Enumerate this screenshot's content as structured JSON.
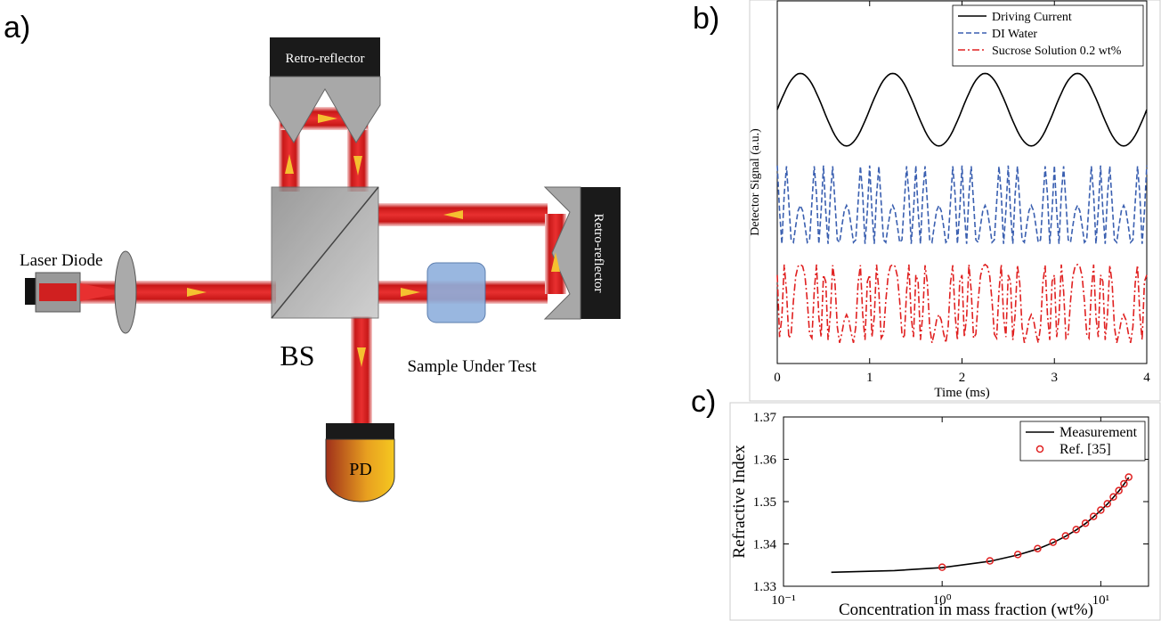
{
  "diagram": {
    "panel_label": "a)",
    "top_reflector": "Retro-reflector",
    "right_reflector": "Retro-reflector",
    "laser": "Laser Diode",
    "splitter": "BS",
    "sample": "Sample Under Test",
    "detector": "PD"
  },
  "chart_data": [
    {
      "type": "line",
      "panel_label": "b)",
      "xlabel": "Time (ms)",
      "ylabel": "Detector Signal (a.u.)",
      "xlim": [
        0,
        4
      ],
      "xticks": [
        0,
        1,
        2,
        3,
        4
      ],
      "ylim": [
        0,
        10
      ],
      "legend": "upper right",
      "x": [
        0,
        0.025,
        0.05,
        0.075,
        0.1,
        0.125,
        0.15,
        0.175,
        0.2,
        0.225,
        0.25,
        0.275,
        0.3,
        0.325,
        0.35,
        0.375,
        0.4,
        0.425,
        0.45,
        0.475,
        0.5,
        0.525,
        0.55,
        0.575,
        0.6,
        0.625,
        0.65,
        0.675,
        0.7,
        0.725,
        0.75,
        0.775,
        0.8,
        0.825,
        0.85,
        0.875,
        0.9,
        0.925,
        0.95,
        0.975,
        1,
        1.025,
        1.05,
        1.075,
        1.1,
        1.125,
        1.15,
        1.175,
        1.2,
        1.225,
        1.25,
        1.275,
        1.3,
        1.325,
        1.35,
        1.375,
        1.4,
        1.425,
        1.45,
        1.475,
        1.5,
        1.525,
        1.55,
        1.575,
        1.6,
        1.625,
        1.65,
        1.675,
        1.7,
        1.725,
        1.75,
        1.775,
        1.8,
        1.825,
        1.85,
        1.875,
        1.9,
        1.925,
        1.95,
        1.975,
        2,
        2.025,
        2.05,
        2.075,
        2.1,
        2.125,
        2.15,
        2.175,
        2.2,
        2.225,
        2.25,
        2.275,
        2.3,
        2.325,
        2.35,
        2.375,
        2.4,
        2.425,
        2.45,
        2.475,
        2.5,
        2.525,
        2.55,
        2.575,
        2.6,
        2.625,
        2.65,
        2.675,
        2.7,
        2.725,
        2.75,
        2.775,
        2.8,
        2.825,
        2.85,
        2.875,
        2.9,
        2.925,
        2.95,
        2.975,
        3,
        3.025,
        3.05,
        3.075,
        3.1,
        3.125,
        3.15,
        3.175,
        3.2,
        3.225,
        3.25,
        3.275,
        3.3,
        3.325,
        3.35,
        3.375,
        3.4,
        3.425,
        3.45,
        3.475,
        3.5,
        3.525,
        3.55,
        3.575,
        3.6,
        3.625,
        3.65,
        3.675,
        3.7,
        3.725,
        3.75,
        3.775,
        3.8,
        3.825,
        3.85,
        3.875,
        3.9,
        3.925,
        3.95,
        3.975,
        4
      ],
      "series": [
        {
          "name": "Driving Current",
          "color": "#000000",
          "dash": "solid",
          "values": [
            7,
            7.16,
            7.31,
            7.45,
            7.59,
            7.71,
            7.81,
            7.89,
            7.95,
            7.99,
            8,
            7.99,
            7.95,
            7.89,
            7.81,
            7.71,
            7.59,
            7.45,
            7.31,
            7.16,
            7,
            6.84,
            6.69,
            6.55,
            6.41,
            6.29,
            6.19,
            6.11,
            6.05,
            6.01,
            6,
            6.01,
            6.05,
            6.11,
            6.19,
            6.29,
            6.41,
            6.55,
            6.69,
            6.84,
            7,
            7.16,
            7.31,
            7.45,
            7.59,
            7.71,
            7.81,
            7.89,
            7.95,
            7.99,
            8,
            7.99,
            7.95,
            7.89,
            7.81,
            7.71,
            7.59,
            7.45,
            7.31,
            7.16,
            7,
            6.84,
            6.69,
            6.55,
            6.41,
            6.29,
            6.19,
            6.11,
            6.05,
            6.01,
            6,
            6.01,
            6.05,
            6.11,
            6.19,
            6.29,
            6.41,
            6.55,
            6.69,
            6.84,
            7,
            7.16,
            7.31,
            7.45,
            7.59,
            7.71,
            7.81,
            7.89,
            7.95,
            7.99,
            8,
            7.99,
            7.95,
            7.89,
            7.81,
            7.71,
            7.59,
            7.45,
            7.31,
            7.16,
            7,
            6.84,
            6.69,
            6.55,
            6.41,
            6.29,
            6.19,
            6.11,
            6.05,
            6.01,
            6,
            6.01,
            6.05,
            6.11,
            6.19,
            6.29,
            6.41,
            6.55,
            6.69,
            6.84,
            7,
            7.16,
            7.31,
            7.45,
            7.59,
            7.71,
            7.81,
            7.89,
            7.95,
            7.99,
            8,
            7.99,
            7.95,
            7.89,
            7.81,
            7.71,
            7.59,
            7.45,
            7.31,
            7.16,
            7,
            6.84,
            6.69,
            6.55,
            6.41,
            6.29,
            6.19,
            6.11,
            6.05,
            6.01,
            6,
            6.01,
            6.05,
            6.11,
            6.19,
            6.29,
            6.41,
            6.55,
            6.69,
            6.84,
            7
          ]
        },
        {
          "name": "DI Water",
          "color": "#3a5fb0",
          "dash": "dashed",
          "values": [
            5.46,
            4.2,
            3.3,
            4.66,
            5.44,
            4.44,
            3.41,
            3.34,
            3.8,
            4.21,
            4.36,
            4.21,
            3.8,
            3.34,
            3.41,
            4.44,
            5.44,
            4.66,
            3.3,
            4.2,
            5.46,
            4.2,
            3.3,
            4.66,
            5.44,
            4.44,
            3.41,
            3.34,
            3.8,
            4.21,
            4.36,
            4.21,
            3.8,
            3.34,
            3.41,
            4.44,
            5.44,
            4.66,
            3.3,
            4.2,
            5.46,
            4.2,
            3.3,
            4.66,
            5.44,
            4.44,
            3.41,
            3.34,
            3.8,
            4.21,
            4.36,
            4.21,
            3.8,
            3.34,
            3.41,
            4.44,
            5.44,
            4.66,
            3.3,
            4.2,
            5.46,
            4.2,
            3.3,
            4.66,
            5.44,
            4.44,
            3.41,
            3.34,
            3.8,
            4.21,
            4.36,
            4.21,
            3.8,
            3.34,
            3.41,
            4.44,
            5.44,
            4.66,
            3.3,
            4.2,
            5.46,
            4.2,
            3.3,
            4.66,
            5.44,
            4.44,
            3.41,
            3.34,
            3.8,
            4.21,
            4.36,
            4.21,
            3.8,
            3.34,
            3.41,
            4.44,
            5.44,
            4.66,
            3.3,
            4.2,
            5.46,
            4.2,
            3.3,
            4.66,
            5.44,
            4.44,
            3.41,
            3.34,
            3.8,
            4.21,
            4.36,
            4.21,
            3.8,
            3.34,
            3.41,
            4.44,
            5.44,
            4.66,
            3.3,
            4.2,
            5.46,
            4.2,
            3.3,
            4.66,
            5.44,
            4.44,
            3.41,
            3.34,
            3.8,
            4.21,
            4.36,
            4.21,
            3.8,
            3.34,
            3.41,
            4.44,
            5.44,
            4.66,
            3.3,
            4.2,
            5.46,
            4.2,
            3.3,
            4.66,
            5.44,
            4.44,
            3.41,
            3.34,
            3.8,
            4.21,
            4.36,
            4.21,
            3.8,
            3.34,
            3.41,
            4.44,
            5.44,
            4.66,
            3.3,
            4.2,
            5.46
          ]
        },
        {
          "name": "Sucrose Solution 0.2 wt%",
          "color": "#e02020",
          "dash": "dashdot",
          "values": [
            2.44,
            0.73,
            1.28,
            2.73,
            1.99,
            0.7,
            0.81,
            1.73,
            2.41,
            2.68,
            2.73,
            2.68,
            2.41,
            1.73,
            0.81,
            0.7,
            1.99,
            2.73,
            1.28,
            0.73,
            2.44,
            2.26,
            0.65,
            1.35,
            2.71,
            2.22,
            1.01,
            0.57,
            0.84,
            1.2,
            1.35,
            1.2,
            0.84,
            0.57,
            1.01,
            2.22,
            2.71,
            1.35,
            0.65,
            2.26,
            2.44,
            0.73,
            1.28,
            2.73,
            1.99,
            0.7,
            0.81,
            1.73,
            2.41,
            2.68,
            2.73,
            2.68,
            2.41,
            1.73,
            0.81,
            0.7,
            1.99,
            2.73,
            1.28,
            0.73,
            2.44,
            2.26,
            0.65,
            1.35,
            2.71,
            2.22,
            1.01,
            0.57,
            0.84,
            1.2,
            1.35,
            1.2,
            0.84,
            0.57,
            1.01,
            2.22,
            2.71,
            1.35,
            0.65,
            2.26,
            2.44,
            0.73,
            1.28,
            2.73,
            1.99,
            0.7,
            0.81,
            1.73,
            2.41,
            2.68,
            2.73,
            2.68,
            2.41,
            1.73,
            0.81,
            0.7,
            1.99,
            2.73,
            1.28,
            0.73,
            2.44,
            2.26,
            0.65,
            1.35,
            2.71,
            2.22,
            1.01,
            0.57,
            0.84,
            1.2,
            1.35,
            1.2,
            0.84,
            0.57,
            1.01,
            2.22,
            2.71,
            1.35,
            0.65,
            2.26,
            2.44,
            0.73,
            1.28,
            2.73,
            1.99,
            0.7,
            0.81,
            1.73,
            2.41,
            2.68,
            2.73,
            2.68,
            2.41,
            1.73,
            0.81,
            0.7,
            1.99,
            2.73,
            1.28,
            0.73,
            2.44,
            2.26,
            0.65,
            1.35,
            2.71,
            2.22,
            1.01,
            0.57,
            0.84,
            1.2,
            1.35,
            1.2,
            0.84,
            0.57,
            1.01,
            2.22,
            2.71,
            1.35,
            0.65,
            2.26,
            2.44
          ]
        }
      ]
    },
    {
      "type": "line",
      "panel_label": "c)",
      "xlabel": "Concentration in mass fraction (wt%)",
      "ylabel": "Refractive Index",
      "xscale": "log",
      "xlim": [
        0.1,
        20
      ],
      "xticks": [
        {
          "value": 0.1,
          "label": "10⁻¹"
        },
        {
          "value": 1,
          "label": "10⁰"
        },
        {
          "value": 10,
          "label": "10¹"
        }
      ],
      "ylim": [
        1.33,
        1.37
      ],
      "yticks": [
        1.33,
        1.34,
        1.35,
        1.36,
        1.37
      ],
      "legend": "upper right",
      "series": [
        {
          "name": "Measurement",
          "color": "#000000",
          "dash": "solid",
          "mode": "line",
          "x": [
            0.2,
            0.5,
            1,
            2,
            3,
            4,
            5,
            6,
            7,
            8,
            9,
            10,
            11,
            12,
            13,
            14,
            15
          ],
          "values": [
            1.3333,
            1.3337,
            1.3344,
            1.3359,
            1.3374,
            1.3388,
            1.3403,
            1.3418,
            1.3433,
            1.3448,
            1.3464,
            1.3479,
            1.3494,
            1.351,
            1.3525,
            1.3541,
            1.3557
          ]
        },
        {
          "name": "Ref. [35]",
          "color": "#e02020",
          "mode": "markers",
          "x": [
            1,
            2,
            3,
            4,
            5,
            6,
            7,
            8,
            9,
            10,
            11,
            12,
            13,
            14,
            15
          ],
          "values": [
            1.3345,
            1.336,
            1.3375,
            1.3389,
            1.3404,
            1.3419,
            1.3434,
            1.3449,
            1.3465,
            1.348,
            1.3495,
            1.3511,
            1.3526,
            1.3542,
            1.3558
          ]
        }
      ]
    }
  ]
}
